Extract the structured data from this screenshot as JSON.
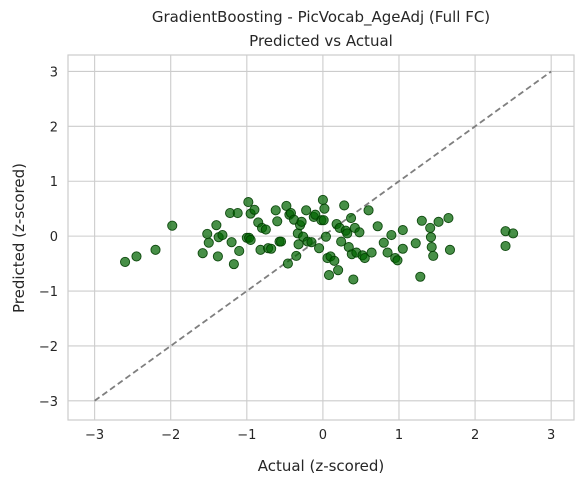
{
  "chart_data": {
    "type": "scatter",
    "title": "GradientBoosting - PicVocab_AgeAdj (Full FC)",
    "subtitle": "Predicted vs Actual",
    "xlabel": "Actual (z-scored)",
    "ylabel": "Predicted (z-scored)",
    "xlim": [
      -3.35,
      3.3
    ],
    "ylim": [
      -3.35,
      3.3
    ],
    "xticks": [
      -3,
      -2,
      -1,
      0,
      1,
      2,
      3
    ],
    "yticks": [
      -3,
      -2,
      -1,
      0,
      1,
      2,
      3
    ],
    "xtick_labels": [
      "−3",
      "−2",
      "−1",
      "0",
      "1",
      "2",
      "3"
    ],
    "ytick_labels": [
      "−3",
      "−2",
      "−1",
      "0",
      "1",
      "2",
      "3"
    ],
    "grid": true,
    "reference_line": {
      "x": [
        -3,
        3
      ],
      "y": [
        -3,
        3
      ]
    },
    "colors": {
      "points": "#006400",
      "reference_line": "#7f7f7f",
      "grid": "#cccccc"
    },
    "points": [
      {
        "x": -2.6,
        "y": -0.47
      },
      {
        "x": -2.45,
        "y": -0.37
      },
      {
        "x": -2.2,
        "y": -0.25
      },
      {
        "x": -1.98,
        "y": 0.19
      },
      {
        "x": -1.58,
        "y": -0.31
      },
      {
        "x": -1.52,
        "y": 0.04
      },
      {
        "x": -1.5,
        "y": -0.12
      },
      {
        "x": -1.4,
        "y": 0.2
      },
      {
        "x": -1.38,
        "y": -0.37
      },
      {
        "x": -1.37,
        "y": -0.02
      },
      {
        "x": -1.32,
        "y": 0.02
      },
      {
        "x": -1.22,
        "y": 0.42
      },
      {
        "x": -1.2,
        "y": -0.11
      },
      {
        "x": -1.17,
        "y": -0.51
      },
      {
        "x": -1.12,
        "y": 0.42
      },
      {
        "x": -1.1,
        "y": -0.27
      },
      {
        "x": -1.0,
        "y": -0.03
      },
      {
        "x": -0.98,
        "y": 0.62
      },
      {
        "x": -0.97,
        "y": -0.03
      },
      {
        "x": -0.95,
        "y": -0.07
      },
      {
        "x": -0.95,
        "y": 0.41
      },
      {
        "x": -0.9,
        "y": 0.48
      },
      {
        "x": -0.85,
        "y": 0.25
      },
      {
        "x": -0.82,
        "y": -0.25
      },
      {
        "x": -0.8,
        "y": 0.15
      },
      {
        "x": -0.75,
        "y": 0.12
      },
      {
        "x": -0.72,
        "y": -0.22
      },
      {
        "x": -0.68,
        "y": -0.23
      },
      {
        "x": -0.62,
        "y": 0.47
      },
      {
        "x": -0.6,
        "y": 0.27
      },
      {
        "x": -0.57,
        "y": -0.1
      },
      {
        "x": -0.55,
        "y": -0.1
      },
      {
        "x": -0.48,
        "y": 0.55
      },
      {
        "x": -0.46,
        "y": -0.5
      },
      {
        "x": -0.44,
        "y": 0.39
      },
      {
        "x": -0.42,
        "y": 0.42
      },
      {
        "x": -0.38,
        "y": 0.3
      },
      {
        "x": -0.35,
        "y": -0.36
      },
      {
        "x": -0.33,
        "y": 0.05
      },
      {
        "x": -0.32,
        "y": -0.15
      },
      {
        "x": -0.3,
        "y": 0.2
      },
      {
        "x": -0.28,
        "y": 0.26
      },
      {
        "x": -0.26,
        "y": -0.01
      },
      {
        "x": -0.22,
        "y": 0.47
      },
      {
        "x": -0.2,
        "y": -0.1
      },
      {
        "x": -0.15,
        "y": -0.11
      },
      {
        "x": -0.12,
        "y": 0.35
      },
      {
        "x": -0.1,
        "y": 0.39
      },
      {
        "x": -0.05,
        "y": -0.22
      },
      {
        "x": -0.02,
        "y": 0.29
      },
      {
        "x": 0.0,
        "y": 0.66
      },
      {
        "x": 0.01,
        "y": 0.29
      },
      {
        "x": 0.02,
        "y": 0.5
      },
      {
        "x": 0.04,
        "y": -0.01
      },
      {
        "x": 0.06,
        "y": -0.4
      },
      {
        "x": 0.08,
        "y": -0.71
      },
      {
        "x": 0.1,
        "y": -0.37
      },
      {
        "x": 0.15,
        "y": -0.45
      },
      {
        "x": 0.18,
        "y": 0.22
      },
      {
        "x": 0.2,
        "y": -0.62
      },
      {
        "x": 0.22,
        "y": 0.15
      },
      {
        "x": 0.24,
        "y": -0.1
      },
      {
        "x": 0.28,
        "y": 0.56
      },
      {
        "x": 0.3,
        "y": 0.1
      },
      {
        "x": 0.32,
        "y": 0.05
      },
      {
        "x": 0.34,
        "y": -0.2
      },
      {
        "x": 0.37,
        "y": 0.33
      },
      {
        "x": 0.38,
        "y": -0.33
      },
      {
        "x": 0.4,
        "y": -0.79
      },
      {
        "x": 0.42,
        "y": 0.15
      },
      {
        "x": 0.44,
        "y": -0.3
      },
      {
        "x": 0.48,
        "y": 0.07
      },
      {
        "x": 0.52,
        "y": -0.35
      },
      {
        "x": 0.55,
        "y": -0.4
      },
      {
        "x": 0.6,
        "y": 0.47
      },
      {
        "x": 0.64,
        "y": -0.3
      },
      {
        "x": 0.72,
        "y": 0.18
      },
      {
        "x": 0.8,
        "y": -0.12
      },
      {
        "x": 0.85,
        "y": -0.3
      },
      {
        "x": 0.9,
        "y": 0.02
      },
      {
        "x": 0.95,
        "y": -0.4
      },
      {
        "x": 0.98,
        "y": -0.44
      },
      {
        "x": 1.05,
        "y": -0.23
      },
      {
        "x": 1.05,
        "y": 0.11
      },
      {
        "x": 1.22,
        "y": -0.13
      },
      {
        "x": 1.28,
        "y": -0.74
      },
      {
        "x": 1.3,
        "y": 0.28
      },
      {
        "x": 1.41,
        "y": 0.15
      },
      {
        "x": 1.42,
        "y": -0.02
      },
      {
        "x": 1.43,
        "y": -0.2
      },
      {
        "x": 1.45,
        "y": -0.36
      },
      {
        "x": 1.52,
        "y": 0.26
      },
      {
        "x": 1.65,
        "y": 0.33
      },
      {
        "x": 1.67,
        "y": -0.25
      },
      {
        "x": 2.4,
        "y": 0.09
      },
      {
        "x": 2.4,
        "y": -0.18
      },
      {
        "x": 2.5,
        "y": 0.05
      }
    ]
  }
}
